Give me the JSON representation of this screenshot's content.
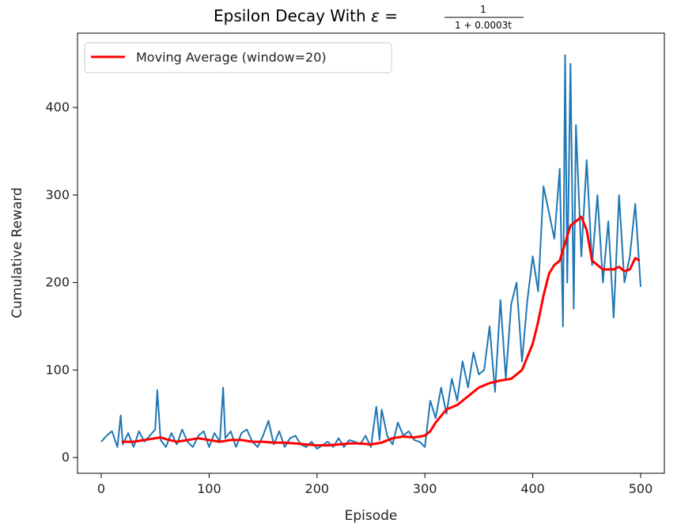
{
  "chart_data": {
    "type": "line",
    "title": {
      "prefix": "Epsilon Decay With ",
      "symbol": "ε",
      "equals": " = ",
      "numerator": "1",
      "denominator": "1 + 0.0003t"
    },
    "xlabel": "Episode",
    "ylabel": "Cumulative Reward",
    "xlim": [
      -22,
      522
    ],
    "ylim": [
      -18,
      485
    ],
    "xticks": [
      0,
      100,
      200,
      300,
      400,
      500
    ],
    "yticks": [
      0,
      100,
      200,
      300,
      400
    ],
    "grid": false,
    "legend_position": "top-left",
    "colors": {
      "raw": "#1f77b4",
      "moving_average": "#ff0000"
    },
    "series": [
      {
        "key": "raw",
        "x": [
          0,
          5,
          10,
          15,
          18,
          20,
          25,
          30,
          35,
          40,
          45,
          50,
          52,
          55,
          60,
          65,
          70,
          75,
          80,
          85,
          90,
          95,
          100,
          105,
          110,
          113,
          115,
          120,
          125,
          130,
          135,
          140,
          145,
          150,
          155,
          160,
          165,
          170,
          175,
          180,
          185,
          190,
          195,
          200,
          205,
          210,
          215,
          220,
          225,
          230,
          235,
          240,
          245,
          250,
          255,
          258,
          260,
          265,
          270,
          275,
          280,
          285,
          290,
          295,
          300,
          305,
          310,
          315,
          320,
          325,
          330,
          335,
          340,
          345,
          350,
          355,
          360,
          365,
          370,
          375,
          380,
          385,
          390,
          395,
          400,
          405,
          410,
          415,
          420,
          425,
          428,
          430,
          432,
          435,
          438,
          440,
          445,
          450,
          455,
          460,
          465,
          470,
          475,
          480,
          485,
          490,
          495,
          500
        ],
        "values": [
          18,
          25,
          30,
          12,
          48,
          15,
          28,
          12,
          30,
          18,
          25,
          32,
          77,
          20,
          12,
          28,
          15,
          32,
          18,
          12,
          25,
          30,
          12,
          28,
          18,
          80,
          22,
          30,
          12,
          28,
          32,
          18,
          12,
          25,
          42,
          15,
          30,
          12,
          22,
          25,
          15,
          12,
          18,
          10,
          14,
          18,
          12,
          22,
          12,
          20,
          18,
          15,
          25,
          12,
          58,
          20,
          55,
          25,
          15,
          40,
          25,
          30,
          20,
          18,
          12,
          65,
          45,
          80,
          50,
          90,
          65,
          110,
          80,
          120,
          95,
          100,
          150,
          75,
          180,
          90,
          175,
          200,
          110,
          180,
          230,
          190,
          310,
          280,
          250,
          330,
          150,
          460,
          200,
          450,
          170,
          380,
          230,
          340,
          220,
          300,
          200,
          270,
          160,
          300,
          200,
          230,
          290,
          195
        ]
      },
      {
        "key": "moving_average",
        "name": "Moving Average (window=20)",
        "x": [
          19,
          30,
          40,
          50,
          55,
          60,
          70,
          80,
          90,
          100,
          110,
          120,
          130,
          140,
          150,
          160,
          170,
          180,
          190,
          200,
          210,
          220,
          230,
          240,
          250,
          260,
          270,
          280,
          290,
          300,
          305,
          310,
          320,
          330,
          340,
          350,
          360,
          370,
          380,
          390,
          395,
          400,
          405,
          410,
          415,
          420,
          425,
          430,
          435,
          440,
          445,
          450,
          455,
          460,
          465,
          470,
          475,
          480,
          485,
          490,
          495,
          499
        ],
        "values": [
          18,
          18,
          20,
          22,
          23,
          21,
          18,
          20,
          22,
          20,
          18,
          20,
          20,
          18,
          18,
          17,
          17,
          16,
          15,
          14,
          14,
          15,
          16,
          16,
          15,
          17,
          22,
          24,
          23,
          25,
          30,
          40,
          55,
          60,
          70,
          80,
          85,
          88,
          90,
          100,
          115,
          130,
          155,
          185,
          210,
          220,
          225,
          245,
          265,
          270,
          275,
          260,
          225,
          220,
          215,
          215,
          215,
          218,
          213,
          215,
          228,
          225
        ]
      }
    ]
  }
}
